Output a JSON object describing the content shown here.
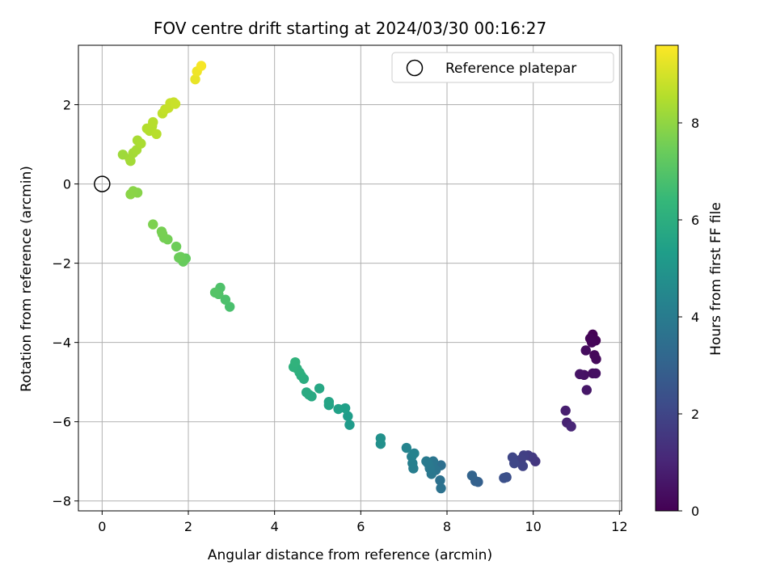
{
  "chart_data": {
    "type": "scatter",
    "title": "FOV centre drift starting at 2024/03/30 00:16:27",
    "xlabel": "Angular distance from reference (arcmin)",
    "ylabel": "Rotation from reference (arcmin)",
    "xlim": [
      -0.55,
      12.05
    ],
    "ylim": [
      -8.25,
      3.5
    ],
    "xticks": [
      0,
      2,
      4,
      6,
      8,
      10,
      12
    ],
    "yticks": [
      -8,
      -6,
      -4,
      -2,
      0,
      2
    ],
    "grid": true,
    "legend": {
      "position": "upper-right",
      "entries": [
        "Reference platepar"
      ]
    },
    "reference_point": {
      "x": 0,
      "y": 0
    },
    "colorbar": {
      "label": "Hours from first FF file",
      "colormap": "viridis",
      "range": [
        0,
        9.6
      ],
      "ticks": [
        0,
        2,
        4,
        6,
        8
      ]
    },
    "points": [
      {
        "x": 11.38,
        "y": -3.8,
        "c": 0.0
      },
      {
        "x": 11.45,
        "y": -3.95,
        "c": 0.05
      },
      {
        "x": 11.32,
        "y": -3.9,
        "c": 0.08
      },
      {
        "x": 11.36,
        "y": -4.0,
        "c": 0.12
      },
      {
        "x": 11.42,
        "y": -4.32,
        "c": 0.18
      },
      {
        "x": 11.46,
        "y": -4.42,
        "c": 0.22
      },
      {
        "x": 11.22,
        "y": -4.2,
        "c": 0.3
      },
      {
        "x": 11.38,
        "y": -4.78,
        "c": 0.35
      },
      {
        "x": 11.45,
        "y": -4.78,
        "c": 0.4
      },
      {
        "x": 11.18,
        "y": -4.82,
        "c": 0.45
      },
      {
        "x": 11.08,
        "y": -4.8,
        "c": 0.5
      },
      {
        "x": 11.24,
        "y": -5.2,
        "c": 0.6
      },
      {
        "x": 10.75,
        "y": -5.72,
        "c": 0.8
      },
      {
        "x": 10.78,
        "y": -6.02,
        "c": 0.9
      },
      {
        "x": 10.88,
        "y": -6.12,
        "c": 1.0
      },
      {
        "x": 10.05,
        "y": -7.0,
        "c": 1.5
      },
      {
        "x": 9.98,
        "y": -6.9,
        "c": 1.6
      },
      {
        "x": 9.88,
        "y": -6.85,
        "c": 1.7
      },
      {
        "x": 9.78,
        "y": -6.85,
        "c": 1.8
      },
      {
        "x": 9.72,
        "y": -6.95,
        "c": 1.85
      },
      {
        "x": 9.76,
        "y": -7.12,
        "c": 1.9
      },
      {
        "x": 9.52,
        "y": -6.9,
        "c": 2.0
      },
      {
        "x": 9.56,
        "y": -7.05,
        "c": 2.05
      },
      {
        "x": 9.38,
        "y": -7.4,
        "c": 2.3
      },
      {
        "x": 9.32,
        "y": -7.42,
        "c": 2.35
      },
      {
        "x": 8.72,
        "y": -7.52,
        "c": 2.9
      },
      {
        "x": 8.66,
        "y": -7.5,
        "c": 2.95
      },
      {
        "x": 8.58,
        "y": -7.36,
        "c": 3.05
      },
      {
        "x": 7.86,
        "y": -7.1,
        "c": 3.5
      },
      {
        "x": 7.84,
        "y": -7.48,
        "c": 3.55
      },
      {
        "x": 7.86,
        "y": -7.68,
        "c": 3.6
      },
      {
        "x": 7.74,
        "y": -7.22,
        "c": 3.7
      },
      {
        "x": 7.68,
        "y": -7.0,
        "c": 3.75
      },
      {
        "x": 7.64,
        "y": -7.32,
        "c": 3.8
      },
      {
        "x": 7.6,
        "y": -7.18,
        "c": 3.85
      },
      {
        "x": 7.56,
        "y": -7.05,
        "c": 3.9
      },
      {
        "x": 7.52,
        "y": -7.0,
        "c": 3.95
      },
      {
        "x": 7.22,
        "y": -7.18,
        "c": 4.1
      },
      {
        "x": 7.2,
        "y": -7.05,
        "c": 4.15
      },
      {
        "x": 7.18,
        "y": -6.88,
        "c": 4.2
      },
      {
        "x": 7.24,
        "y": -6.8,
        "c": 4.25
      },
      {
        "x": 7.06,
        "y": -6.66,
        "c": 4.35
      },
      {
        "x": 6.46,
        "y": -6.56,
        "c": 4.8
      },
      {
        "x": 6.46,
        "y": -6.42,
        "c": 4.85
      },
      {
        "x": 5.74,
        "y": -6.08,
        "c": 5.2
      },
      {
        "x": 5.7,
        "y": -5.86,
        "c": 5.3
      },
      {
        "x": 5.64,
        "y": -5.66,
        "c": 5.4
      },
      {
        "x": 5.48,
        "y": -5.68,
        "c": 5.45
      },
      {
        "x": 5.26,
        "y": -5.58,
        "c": 5.55
      },
      {
        "x": 5.26,
        "y": -5.5,
        "c": 5.6
      },
      {
        "x": 5.04,
        "y": -5.16,
        "c": 5.7
      },
      {
        "x": 4.86,
        "y": -5.36,
        "c": 5.8
      },
      {
        "x": 4.8,
        "y": -5.32,
        "c": 5.82
      },
      {
        "x": 4.74,
        "y": -5.26,
        "c": 5.85
      },
      {
        "x": 4.68,
        "y": -4.92,
        "c": 5.95
      },
      {
        "x": 4.62,
        "y": -4.84,
        "c": 6.0
      },
      {
        "x": 4.58,
        "y": -4.76,
        "c": 6.05
      },
      {
        "x": 4.52,
        "y": -4.66,
        "c": 6.1
      },
      {
        "x": 4.44,
        "y": -4.62,
        "c": 6.15
      },
      {
        "x": 4.48,
        "y": -4.5,
        "c": 6.2
      },
      {
        "x": 2.96,
        "y": -3.1,
        "c": 6.8
      },
      {
        "x": 2.86,
        "y": -2.92,
        "c": 6.85
      },
      {
        "x": 2.74,
        "y": -2.62,
        "c": 6.9
      },
      {
        "x": 2.7,
        "y": -2.78,
        "c": 6.95
      },
      {
        "x": 2.62,
        "y": -2.74,
        "c": 7.0
      },
      {
        "x": 1.94,
        "y": -1.88,
        "c": 7.3
      },
      {
        "x": 1.88,
        "y": -1.96,
        "c": 7.35
      },
      {
        "x": 1.82,
        "y": -1.84,
        "c": 7.4
      },
      {
        "x": 1.78,
        "y": -1.86,
        "c": 7.42
      },
      {
        "x": 1.72,
        "y": -1.58,
        "c": 7.45
      },
      {
        "x": 1.52,
        "y": -1.4,
        "c": 7.55
      },
      {
        "x": 1.44,
        "y": -1.36,
        "c": 7.58
      },
      {
        "x": 1.4,
        "y": -1.26,
        "c": 7.6
      },
      {
        "x": 1.38,
        "y": -1.2,
        "c": 7.62
      },
      {
        "x": 1.18,
        "y": -1.02,
        "c": 7.7
      },
      {
        "x": 0.82,
        "y": -0.22,
        "c": 7.85
      },
      {
        "x": 0.72,
        "y": -0.18,
        "c": 7.88
      },
      {
        "x": 0.66,
        "y": -0.26,
        "c": 7.9
      },
      {
        "x": 0.48,
        "y": 0.74,
        "c": 8.2
      },
      {
        "x": 0.64,
        "y": 0.64,
        "c": 8.25
      },
      {
        "x": 0.66,
        "y": 0.58,
        "c": 8.28
      },
      {
        "x": 0.72,
        "y": 0.78,
        "c": 8.3
      },
      {
        "x": 0.8,
        "y": 0.86,
        "c": 8.32
      },
      {
        "x": 0.82,
        "y": 1.1,
        "c": 8.35
      },
      {
        "x": 0.9,
        "y": 1.02,
        "c": 8.38
      },
      {
        "x": 1.04,
        "y": 1.4,
        "c": 8.5
      },
      {
        "x": 1.1,
        "y": 1.34,
        "c": 8.52
      },
      {
        "x": 1.16,
        "y": 1.46,
        "c": 8.54
      },
      {
        "x": 1.18,
        "y": 1.56,
        "c": 8.56
      },
      {
        "x": 1.26,
        "y": 1.26,
        "c": 8.58
      },
      {
        "x": 1.4,
        "y": 1.78,
        "c": 8.7
      },
      {
        "x": 1.46,
        "y": 1.88,
        "c": 8.75
      },
      {
        "x": 1.54,
        "y": 1.92,
        "c": 8.78
      },
      {
        "x": 1.58,
        "y": 2.04,
        "c": 8.8
      },
      {
        "x": 1.66,
        "y": 2.06,
        "c": 8.82
      },
      {
        "x": 1.7,
        "y": 2.02,
        "c": 8.84
      },
      {
        "x": 2.16,
        "y": 2.64,
        "c": 9.3
      },
      {
        "x": 2.2,
        "y": 2.84,
        "c": 9.4
      },
      {
        "x": 2.3,
        "y": 2.98,
        "c": 9.5
      }
    ]
  }
}
